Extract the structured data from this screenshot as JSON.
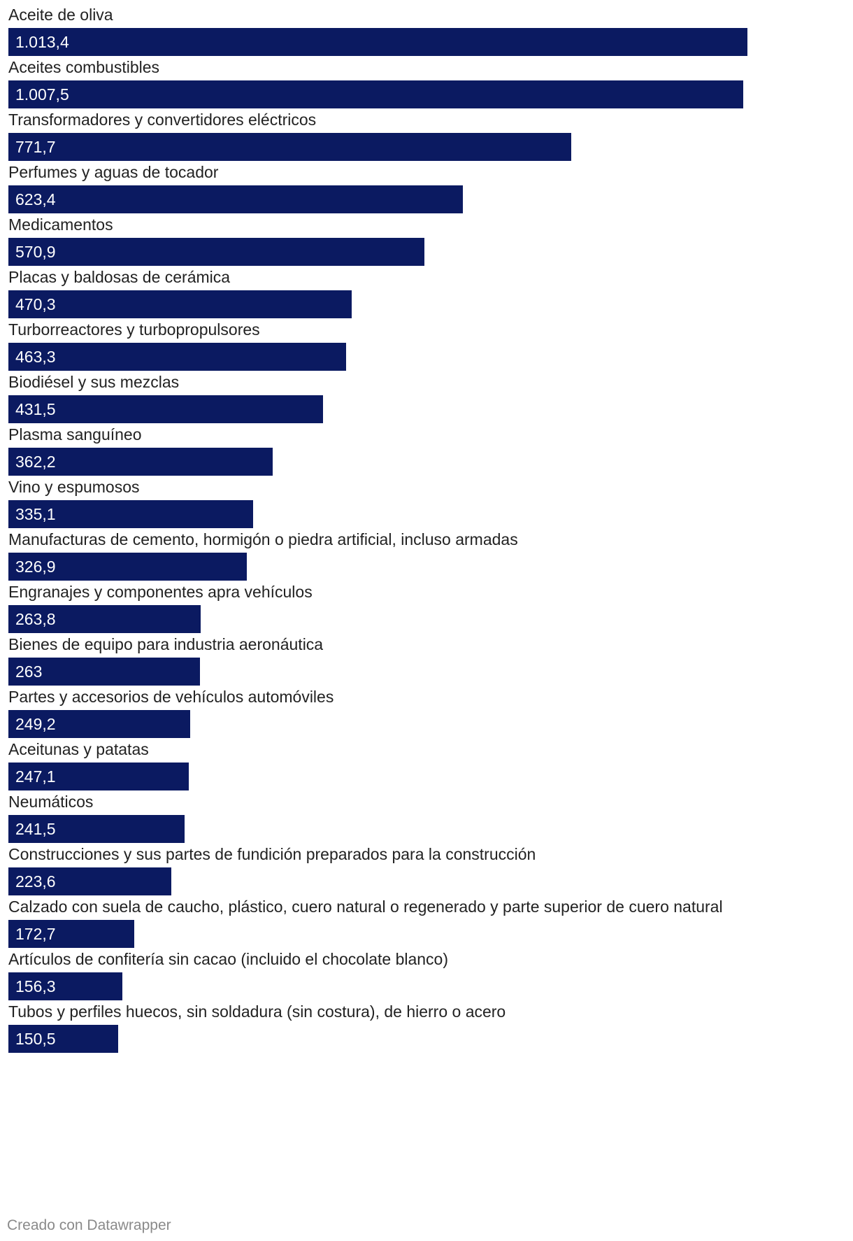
{
  "chart_data": {
    "type": "bar",
    "orientation": "horizontal",
    "categories": [
      "Aceite de oliva",
      "Aceites combustibles",
      "Transformadores y convertidores eléctricos",
      "Perfumes y aguas de tocador",
      "Medicamentos",
      "Placas y baldosas de cerámica",
      "Turborreactores y turbopropulsores",
      "Biodiésel y sus mezclas",
      "Plasma sanguíneo",
      "Vino y espumosos",
      "Manufacturas de cemento, hormigón o piedra artificial, incluso armadas",
      "Engranajes y componentes apra vehículos",
      "Bienes de equipo para industria aeronáutica",
      "Partes y accesorios de vehículos automóviles",
      "Aceitunas y patatas",
      "Neumáticos",
      "Construcciones y sus partes de fundición preparados para la construcción",
      "Calzado con suela de caucho, plástico, cuero natural o regenerado y parte superior de cuero natural",
      "Artículos de confitería sin cacao (incluido el chocolate blanco)",
      "Tubos y perfiles huecos, sin soldadura (sin costura), de hierro o acero"
    ],
    "values": [
      1013.4,
      1007.5,
      771.7,
      623.4,
      570.9,
      470.3,
      463.3,
      431.5,
      362.2,
      335.1,
      326.9,
      263.8,
      263,
      249.2,
      247.1,
      241.5,
      223.6,
      172.7,
      156.3,
      150.5
    ],
    "value_labels": [
      "1.013,4",
      "1.007,5",
      "771,7",
      "623,4",
      "570,9",
      "470,3",
      "463,3",
      "431,5",
      "362,2",
      "335,1",
      "326,9",
      "263,8",
      "263",
      "249,2",
      "247,1",
      "241,5",
      "223,6",
      "172,7",
      "156,3",
      "150,5"
    ],
    "xlim": [
      0,
      1013.4
    ],
    "bar_color": "#0b1a61",
    "title": "",
    "xlabel": "",
    "ylabel": "",
    "grid": false,
    "legend": "none"
  },
  "footer": {
    "credit": "Creado con Datawrapper"
  }
}
